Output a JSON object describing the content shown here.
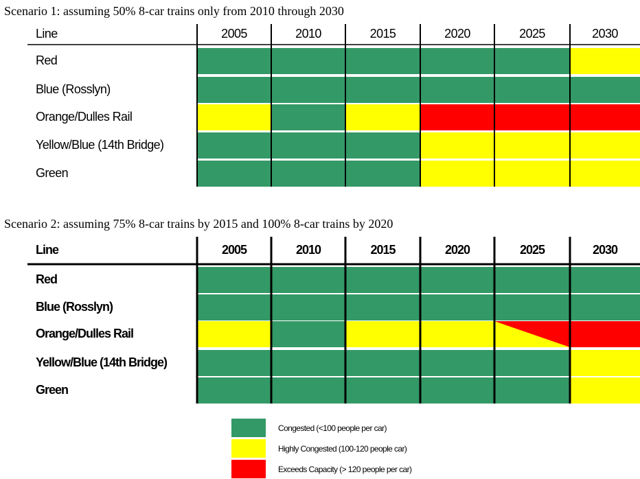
{
  "scenarios": [
    {
      "title": "Scenario 1:  assuming 50% 8-car trains only from 2010 through 2030",
      "header": [
        "Line",
        "2005",
        "2010",
        "2015",
        "2020",
        "2025",
        "2030"
      ],
      "rows": [
        {
          "line": "Red",
          "cells": [
            "#339966",
            "#339966",
            "#339966",
            "#339966",
            "#339966",
            "#ffff00"
          ]
        },
        {
          "line": "Blue (Rosslyn)",
          "cells": [
            "#339966",
            "#339966",
            "#339966",
            "#339966",
            "#339966",
            "#339966"
          ]
        },
        {
          "line": "Orange/Dulles Rail",
          "cells": [
            "#ffff00",
            "#339966",
            "#ffff00",
            "#ff0000",
            "#ff0000",
            "#ff0000"
          ]
        },
        {
          "line": "Yellow/Blue (14th Bridge)",
          "cells": [
            "#339966",
            "#339966",
            "#339966",
            "#ffff00",
            "#ffff00",
            "#ffff00"
          ]
        },
        {
          "line": "Green",
          "cells": [
            "#339966",
            "#339966",
            "#339966",
            "#ffff00",
            "#ffff00",
            "#ffff00"
          ]
        }
      ]
    },
    {
      "title": "Scenario 2:  assuming 75% 8-car trains by 2015 and 100% 8-car trains by 2020",
      "header": [
        "Line",
        "2005",
        "2010",
        "2015",
        "2020",
        "2025",
        "2030"
      ],
      "rows": [
        {
          "line": "Red",
          "cells": [
            "#339966",
            "#339966",
            "#339966",
            "#339966",
            "#339966",
            "#339966"
          ]
        },
        {
          "line": "Blue (Rosslyn)",
          "cells": [
            "#339966",
            "#339966",
            "#339966",
            "#339966",
            "#339966",
            "#339966"
          ]
        },
        {
          "line": "Orange/Dulles Rail",
          "cells": [
            "#ffff00",
            "#339966",
            "#ffff00",
            "#ffff00",
            [
              "#ffff00",
              "#ff0000"
            ],
            "#ff0000"
          ]
        },
        {
          "line": "Yellow/Blue (14th Bridge)",
          "cells": [
            "#339966",
            "#339966",
            "#339966",
            "#339966",
            "#339966",
            "#ffff00"
          ]
        },
        {
          "line": "Green",
          "cells": [
            "#339966",
            "#339966",
            "#339966",
            "#339966",
            "#339966",
            "#ffff00"
          ]
        }
      ]
    }
  ],
  "legend": [
    {
      "color": "#339966",
      "label": "Congested (<100 people per car)"
    },
    {
      "color": "#ffff00",
      "label": "Highly Congested (100-120 people car)"
    },
    {
      "color": "#ff0000",
      "label": "Exceeds Capacity  (> 120 people per car)"
    }
  ]
}
